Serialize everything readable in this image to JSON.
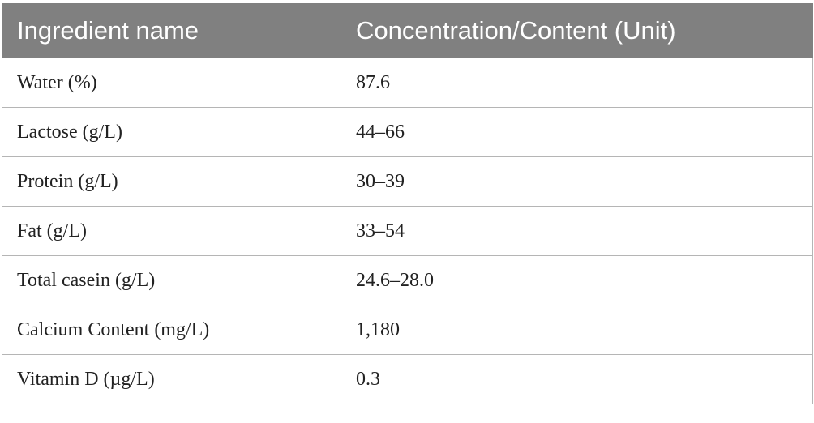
{
  "table": {
    "headers": [
      "Ingredient name",
      "Concentration/Content (Unit)"
    ],
    "rows": [
      [
        "Water (%)",
        "87.6"
      ],
      [
        "Lactose (g/L)",
        "44–66"
      ],
      [
        "Protein (g/L)",
        "30–39"
      ],
      [
        "Fat (g/L)",
        "33–54"
      ],
      [
        "Total casein (g/L)",
        "24.6–28.0"
      ],
      [
        "Calcium Content (mg/L)",
        "1,180"
      ],
      [
        "Vitamin D (µg/L)",
        "0.3"
      ]
    ]
  },
  "colors": {
    "header_bg": "#808080",
    "header_text": "#ffffff",
    "border": "#b5b5b5"
  }
}
